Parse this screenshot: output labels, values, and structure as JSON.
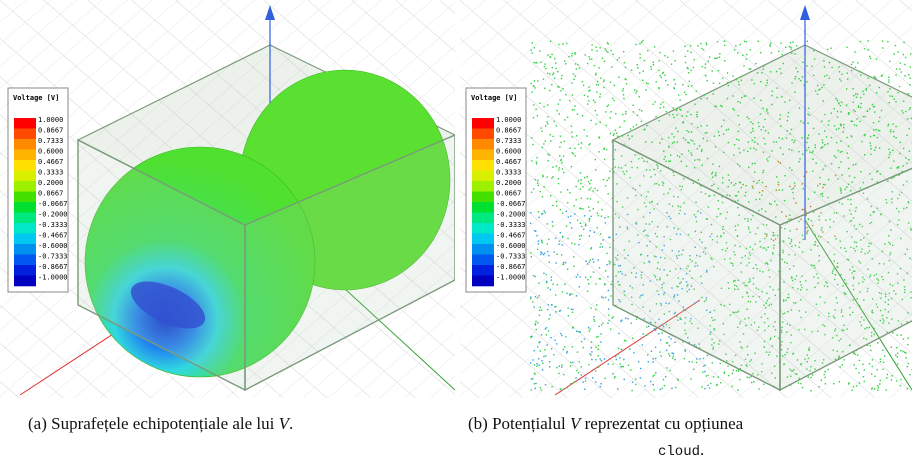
{
  "panels": [
    {
      "legend": {
        "title": "Voltage [V]",
        "values": [
          "1.0000",
          "0.8667",
          "0.7333",
          "0.6000",
          "0.4667",
          "0.3333",
          "0.2000",
          "0.0667",
          "-0.0667",
          "-0.2000",
          "-0.3333",
          "-0.4667",
          "-0.6000",
          "-0.7333",
          "-0.8667",
          "-1.0000"
        ]
      }
    },
    {
      "legend": {
        "title": "Voltage [V]",
        "values": [
          "1.0000",
          "0.8667",
          "0.7333",
          "0.6000",
          "0.4667",
          "0.3333",
          "0.2000",
          "0.0667",
          "-0.0667",
          "-0.2000",
          "-0.3333",
          "-0.4667",
          "-0.6000",
          "-0.7333",
          "-0.8667",
          "-1.0000"
        ]
      }
    }
  ],
  "captions": [
    {
      "label": "(a)",
      "text": "Suprafețele echipotențiale ale lui",
      "variable": "V",
      "end": "."
    },
    {
      "label": "(b)",
      "text": "Potențialul",
      "variable": "V",
      "text2": "reprezentat cu opțiunea",
      "code": "cloud",
      "end": "."
    }
  ]
}
